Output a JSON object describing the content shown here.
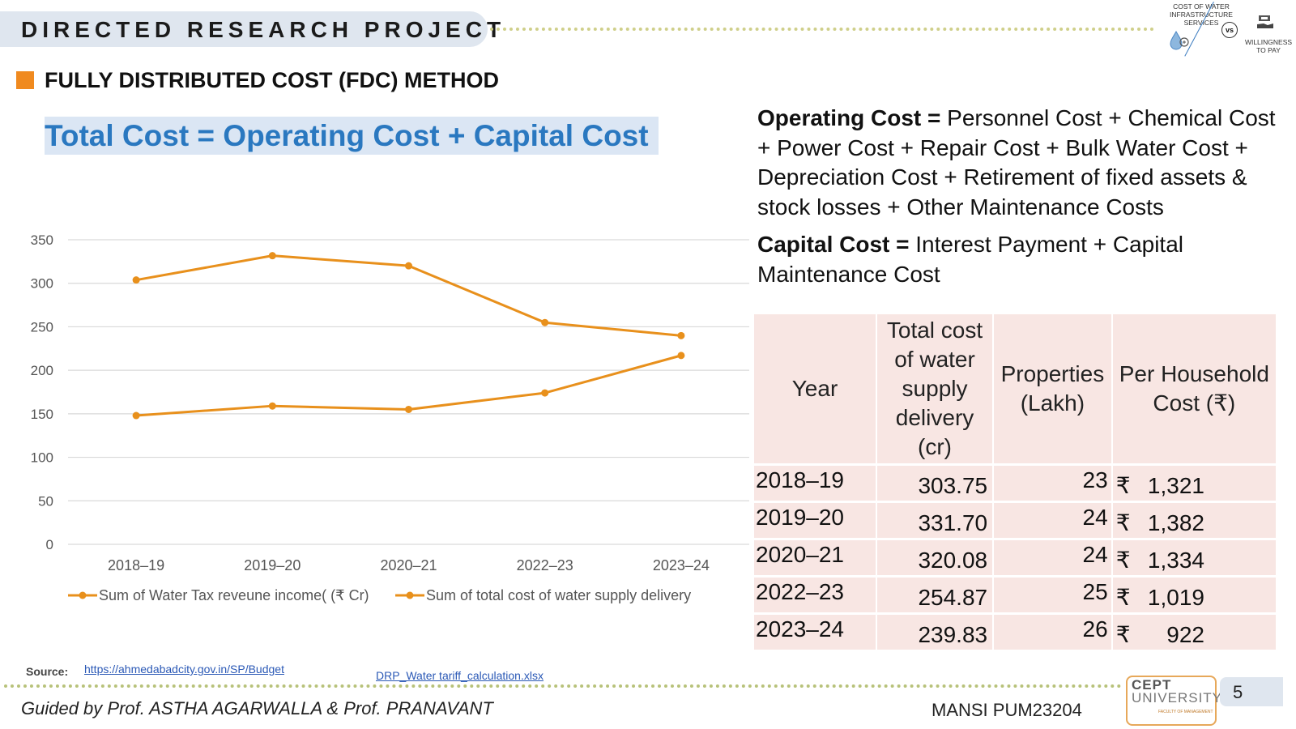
{
  "header": {
    "title": "DIRECTED RESEARCH PROJECT"
  },
  "logo": {
    "left_text": "COST OF WATER INFRASTRUCTURE SERVICES",
    "vs": "vs",
    "right_text": "WILLINGNESS TO PAY"
  },
  "section": {
    "title": "FULLY DISTRIBUTED COST (FDC) METHOD"
  },
  "formula": "Total Cost = Operating Cost + Capital Cost",
  "definitions": {
    "operating_term": "Operating Cost",
    "operating_eq": " = ",
    "operating_def": "Personnel Cost + Chemical Cost + Power Cost + Repair Cost + Bulk Water Cost + Depreciation Cost + Retirement of fixed assets & stock losses + Other Maintenance Costs",
    "capital_term": "Capital Cost",
    "capital_eq": " = ",
    "capital_def": "Interest Payment + Capital Maintenance Cost"
  },
  "chart_data": {
    "type": "line",
    "title": "",
    "xlabel": "",
    "ylabel": "",
    "categories": [
      "2018–19",
      "2019–20",
      "2020–21",
      "2022–23",
      "2023–24"
    ],
    "y_ticks": [
      "0",
      "50",
      "100",
      "150",
      "200",
      "250",
      "300",
      "350"
    ],
    "ylim": [
      0,
      350
    ],
    "grid": true,
    "legend_position": "bottom",
    "series": [
      {
        "name": "Sum of Water Tax reveune income( (₹ Cr)",
        "values": [
          148,
          159,
          155,
          174,
          217
        ],
        "color": "#e8901c"
      },
      {
        "name": "Sum of total cost of water supply delivery",
        "values": [
          303.75,
          331.7,
          320.08,
          254.87,
          239.83
        ],
        "color": "#e8901c"
      }
    ]
  },
  "table": {
    "headers": [
      "Year",
      "Total cost of water supply delivery (cr)",
      "Properties (Lakh)",
      "Per Household Cost (₹)"
    ],
    "rows": [
      {
        "year": "2018–19",
        "total": "303.75",
        "props": "23",
        "rupee": "₹",
        "cost": "1,321"
      },
      {
        "year": "2019–20",
        "total": "331.70",
        "props": "24",
        "rupee": "₹",
        "cost": "1,382"
      },
      {
        "year": "2020–21",
        "total": "320.08",
        "props": "24",
        "rupee": "₹",
        "cost": "1,334"
      },
      {
        "year": "2022–23",
        "total": "254.87",
        "props": "25",
        "rupee": "₹",
        "cost": "1,019"
      },
      {
        "year": "2023–24",
        "total": "239.83",
        "props": "26",
        "rupee": "₹",
        "cost": "922"
      }
    ]
  },
  "footer": {
    "source_label": "Source:",
    "source_link": "https://ahmedabadcity.gov.in/SP/Budget",
    "file_link": "DRP_Water tariff_calculation.xlsx",
    "guided": "Guided by Prof. ASTHA AGARWALLA  & Prof. PRANAVANT",
    "author": "MANSI  PUM23204",
    "cept_line1": "CEPT",
    "cept_line2": "UNIVERSITY",
    "cept_line3": "FACULTY OF MANAGEMENT",
    "page_number": "5"
  }
}
